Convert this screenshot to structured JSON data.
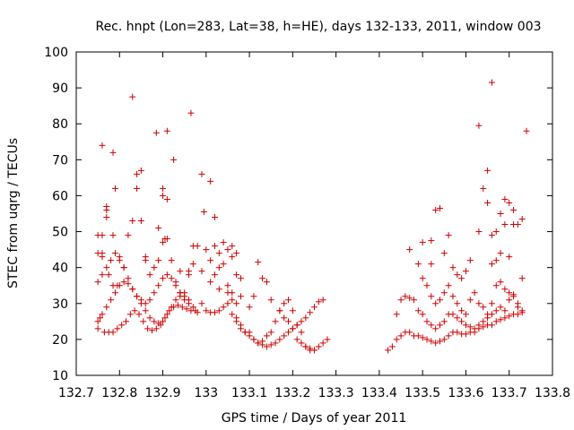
{
  "chart_data": {
    "type": "scatter",
    "title": "Rec. hnpt (Lon=283, Lat=38, h=HE), days 132-133, 2011, window 003",
    "xlabel": "GPS time / Days of year 2011",
    "ylabel": "STEC from uqrg / TECUs",
    "xlim": [
      132.7,
      133.8
    ],
    "ylim": [
      10,
      100
    ],
    "xticks": [
      "132.7",
      "132.8",
      "132.9",
      "133",
      "133.1",
      "133.2",
      "133.3",
      "133.4",
      "133.5",
      "133.6",
      "133.7",
      "133.8"
    ],
    "yticks": [
      "10",
      "20",
      "30",
      "40",
      "50",
      "60",
      "70",
      "80",
      "90",
      "100"
    ],
    "grid": false,
    "marker": "+",
    "color": "#cc0000",
    "points": [
      [
        132.75,
        23.0
      ],
      [
        132.755,
        26.0
      ],
      [
        132.765,
        22.0
      ],
      [
        132.775,
        22.0
      ],
      [
        132.785,
        22.0
      ],
      [
        132.795,
        23.0
      ],
      [
        132.805,
        24.0
      ],
      [
        132.815,
        25.0
      ],
      [
        132.825,
        27.0
      ],
      [
        132.835,
        28.0
      ],
      [
        132.845,
        27.0
      ],
      [
        132.855,
        25.0
      ],
      [
        132.865,
        23.0
      ],
      [
        132.875,
        22.5
      ],
      [
        132.885,
        23.0
      ],
      [
        132.895,
        24.0
      ],
      [
        132.905,
        26.0
      ],
      [
        132.915,
        28.0
      ],
      [
        132.925,
        29.0
      ],
      [
        132.935,
        29.5
      ],
      [
        132.945,
        29.0
      ],
      [
        132.955,
        28.5
      ],
      [
        132.965,
        28.0
      ],
      [
        132.975,
        28.0
      ],
      [
        132.75,
        25.0
      ],
      [
        132.76,
        27.0
      ],
      [
        132.77,
        29.0
      ],
      [
        132.78,
        31.0
      ],
      [
        132.79,
        33.0
      ],
      [
        132.8,
        35.0
      ],
      [
        132.81,
        36.0
      ],
      [
        132.82,
        35.5
      ],
      [
        132.83,
        34.0
      ],
      [
        132.84,
        32.0
      ],
      [
        132.85,
        30.0
      ],
      [
        132.86,
        28.0
      ],
      [
        132.87,
        26.0
      ],
      [
        132.88,
        25.0
      ],
      [
        132.89,
        24.5
      ],
      [
        132.9,
        25.0
      ],
      [
        132.91,
        27.0
      ],
      [
        132.92,
        29.0
      ],
      [
        132.93,
        31.0
      ],
      [
        132.94,
        32.0
      ],
      [
        132.95,
        32.0
      ],
      [
        132.96,
        31.0
      ],
      [
        132.97,
        29.0
      ],
      [
        132.98,
        27.5
      ],
      [
        132.75,
        36.0
      ],
      [
        132.76,
        38.0
      ],
      [
        132.77,
        40.0
      ],
      [
        132.78,
        42.0
      ],
      [
        132.79,
        44.0
      ],
      [
        132.8,
        43.0
      ],
      [
        132.81,
        40.0
      ],
      [
        132.82,
        37.0
      ],
      [
        132.83,
        34.0
      ],
      [
        132.84,
        32.0
      ],
      [
        132.85,
        31.0
      ],
      [
        132.86,
        30.0
      ],
      [
        132.87,
        31.0
      ],
      [
        132.88,
        33.0
      ],
      [
        132.89,
        35.0
      ],
      [
        132.9,
        37.0
      ],
      [
        132.91,
        38.0
      ],
      [
        132.92,
        37.0
      ],
      [
        132.93,
        35.0
      ],
      [
        132.94,
        33.0
      ],
      [
        132.95,
        31.0
      ],
      [
        132.96,
        30.0
      ],
      [
        132.75,
        44.0
      ],
      [
        132.76,
        43.0
      ],
      [
        132.775,
        38.0
      ],
      [
        132.785,
        35.0
      ],
      [
        132.795,
        35.0
      ],
      [
        132.81,
        40.0
      ],
      [
        132.82,
        49.0
      ],
      [
        132.83,
        53.0
      ],
      [
        132.84,
        62.0
      ],
      [
        132.85,
        53.0
      ],
      [
        132.86,
        42.0
      ],
      [
        132.87,
        38.0
      ],
      [
        132.88,
        40.0
      ],
      [
        132.89,
        42.0
      ],
      [
        132.9,
        47.0
      ],
      [
        132.91,
        48.0
      ],
      [
        132.92,
        42.0
      ],
      [
        132.93,
        36.0
      ],
      [
        132.94,
        33.0
      ],
      [
        132.95,
        33.0
      ],
      [
        132.96,
        38.0
      ],
      [
        132.97,
        41.0
      ],
      [
        132.98,
        46.0
      ],
      [
        132.99,
        39.0
      ],
      [
        132.75,
        49.0
      ],
      [
        132.76,
        44.0
      ],
      [
        132.77,
        56.0
      ],
      [
        132.77,
        54.0
      ],
      [
        132.77,
        57.0
      ],
      [
        132.785,
        49.0
      ],
      [
        132.79,
        62.0
      ],
      [
        132.8,
        42.0
      ],
      [
        132.84,
        66.0
      ],
      [
        132.85,
        67.0
      ],
      [
        132.86,
        43.0
      ],
      [
        132.89,
        51.0
      ],
      [
        132.9,
        60.0
      ],
      [
        132.9,
        62.0
      ],
      [
        132.905,
        48.0
      ],
      [
        132.91,
        59.0
      ],
      [
        132.925,
        70.0
      ],
      [
        132.94,
        39.0
      ],
      [
        132.96,
        39.0
      ],
      [
        132.97,
        46.0
      ],
      [
        132.76,
        49.0
      ],
      [
        132.76,
        74.0
      ],
      [
        132.785,
        72.0
      ],
      [
        132.83,
        87.5
      ],
      [
        132.885,
        77.5
      ],
      [
        132.91,
        78.0
      ],
      [
        132.965,
        83.0
      ],
      [
        132.99,
        66.0
      ],
      [
        133.01,
        64.0
      ],
      [
        133.02,
        54.0
      ],
      [
        132.995,
        55.5
      ],
      [
        133.0,
        45.0
      ],
      [
        133.01,
        42.0
      ],
      [
        133.02,
        46.0
      ],
      [
        133.03,
        44.0
      ],
      [
        133.04,
        47.0
      ],
      [
        133.05,
        45.0
      ],
      [
        133.06,
        43.0
      ],
      [
        133.07,
        38.0
      ],
      [
        133.08,
        37.0
      ],
      [
        132.99,
        30.0
      ],
      [
        133.0,
        28.0
      ],
      [
        133.01,
        27.5
      ],
      [
        133.02,
        27.5
      ],
      [
        133.03,
        28.0
      ],
      [
        133.04,
        29.0
      ],
      [
        133.05,
        30.0
      ],
      [
        133.06,
        31.0
      ],
      [
        133.07,
        30.0
      ],
      [
        133.08,
        32.0
      ],
      [
        133.01,
        36.0
      ],
      [
        133.02,
        38.0
      ],
      [
        133.03,
        40.0
      ],
      [
        133.04,
        41.0
      ],
      [
        133.05,
        35.0
      ],
      [
        133.06,
        33.0
      ],
      [
        133.07,
        25.0
      ],
      [
        133.08,
        23.0
      ],
      [
        133.09,
        22.0
      ],
      [
        133.1,
        21.0
      ],
      [
        133.11,
        20.0
      ],
      [
        133.12,
        19.0
      ],
      [
        133.13,
        18.5
      ],
      [
        133.14,
        18.0
      ],
      [
        133.15,
        18.5
      ],
      [
        133.16,
        19.0
      ],
      [
        133.17,
        20.0
      ],
      [
        133.18,
        21.0
      ],
      [
        133.19,
        22.0
      ],
      [
        133.2,
        23.0
      ],
      [
        133.21,
        24.0
      ],
      [
        133.22,
        25.0
      ],
      [
        133.23,
        26.0
      ],
      [
        133.24,
        27.5
      ],
      [
        133.25,
        29.0
      ],
      [
        133.26,
        30.5
      ],
      [
        133.27,
        31.0
      ],
      [
        133.03,
        34.0
      ],
      [
        133.05,
        33.0
      ],
      [
        133.06,
        27.0
      ],
      [
        133.07,
        26.0
      ],
      [
        133.08,
        24.0
      ],
      [
        133.09,
        22.0
      ],
      [
        133.1,
        22.0
      ],
      [
        133.11,
        20.0
      ],
      [
        133.12,
        19.0
      ],
      [
        133.13,
        19.5
      ],
      [
        133.14,
        21.0
      ],
      [
        133.15,
        22.0
      ],
      [
        133.16,
        25.0
      ],
      [
        133.17,
        28.0
      ],
      [
        133.18,
        26.0
      ],
      [
        133.19,
        25.0
      ],
      [
        133.2,
        23.0
      ],
      [
        133.21,
        20.0
      ],
      [
        133.22,
        19.0
      ],
      [
        133.23,
        18.0
      ],
      [
        133.24,
        17.5
      ],
      [
        133.25,
        17.0
      ],
      [
        133.26,
        18.0
      ],
      [
        133.27,
        19.0
      ],
      [
        133.28,
        20.0
      ],
      [
        133.06,
        46.0
      ],
      [
        133.07,
        44.0
      ],
      [
        133.1,
        29.0
      ],
      [
        133.11,
        32.0
      ],
      [
        133.12,
        41.5
      ],
      [
        133.13,
        37.0
      ],
      [
        133.14,
        36.0
      ],
      [
        133.15,
        31.0
      ],
      [
        133.17,
        28.0
      ],
      [
        133.18,
        30.0
      ],
      [
        133.19,
        31.0
      ],
      [
        133.2,
        28.0
      ],
      [
        133.21,
        24.0
      ],
      [
        133.22,
        22.0
      ],
      [
        133.23,
        18.0
      ],
      [
        133.24,
        17.0
      ],
      [
        133.25,
        17.0
      ],
      [
        133.42,
        17.0
      ],
      [
        133.43,
        18.0
      ],
      [
        133.44,
        20.0
      ],
      [
        133.45,
        21.0
      ],
      [
        133.46,
        22.0
      ],
      [
        133.47,
        22.0
      ],
      [
        133.48,
        21.0
      ],
      [
        133.49,
        21.0
      ],
      [
        133.5,
        20.5
      ],
      [
        133.51,
        20.0
      ],
      [
        133.52,
        19.5
      ],
      [
        133.53,
        19.0
      ],
      [
        133.54,
        19.5
      ],
      [
        133.55,
        20.0
      ],
      [
        133.56,
        21.0
      ],
      [
        133.57,
        22.0
      ],
      [
        133.58,
        22.0
      ],
      [
        133.59,
        21.5
      ],
      [
        133.6,
        21.5
      ],
      [
        133.61,
        22.0
      ],
      [
        133.62,
        22.0
      ],
      [
        133.63,
        23.0
      ],
      [
        133.64,
        23.5
      ],
      [
        133.65,
        24.0
      ],
      [
        133.66,
        24.0
      ],
      [
        133.67,
        25.0
      ],
      [
        133.68,
        25.5
      ],
      [
        133.69,
        26.0
      ],
      [
        133.7,
        26.5
      ],
      [
        133.71,
        27.0
      ],
      [
        133.72,
        27.0
      ],
      [
        133.73,
        27.5
      ],
      [
        133.44,
        27.0
      ],
      [
        133.45,
        31.0
      ],
      [
        133.46,
        32.0
      ],
      [
        133.47,
        31.5
      ],
      [
        133.48,
        31.0
      ],
      [
        133.49,
        28.0
      ],
      [
        133.5,
        27.0
      ],
      [
        133.51,
        25.0
      ],
      [
        133.52,
        24.0
      ],
      [
        133.53,
        23.0
      ],
      [
        133.54,
        24.0
      ],
      [
        133.55,
        25.0
      ],
      [
        133.56,
        27.0
      ],
      [
        133.57,
        27.0
      ],
      [
        133.58,
        26.0
      ],
      [
        133.59,
        25.0
      ],
      [
        133.6,
        24.0
      ],
      [
        133.61,
        23.5
      ],
      [
        133.62,
        23.0
      ],
      [
        133.63,
        24.0
      ],
      [
        133.64,
        25.0
      ],
      [
        133.65,
        26.0
      ],
      [
        133.66,
        27.0
      ],
      [
        133.67,
        28.0
      ],
      [
        133.68,
        29.0
      ],
      [
        133.69,
        28.0
      ],
      [
        133.7,
        31.0
      ],
      [
        133.71,
        32.0
      ],
      [
        133.72,
        29.0
      ],
      [
        133.73,
        28.0
      ],
      [
        133.47,
        45.0
      ],
      [
        133.49,
        41.0
      ],
      [
        133.5,
        47.0
      ],
      [
        133.51,
        35.0
      ],
      [
        133.52,
        32.0
      ],
      [
        133.53,
        30.0
      ],
      [
        133.54,
        31.0
      ],
      [
        133.55,
        33.0
      ],
      [
        133.56,
        35.0
      ],
      [
        133.57,
        32.0
      ],
      [
        133.58,
        30.0
      ],
      [
        133.59,
        28.0
      ],
      [
        133.6,
        27.0
      ],
      [
        133.61,
        31.0
      ],
      [
        133.62,
        33.0
      ],
      [
        133.63,
        30.0
      ],
      [
        133.64,
        29.0
      ],
      [
        133.65,
        27.0
      ],
      [
        133.66,
        30.0
      ],
      [
        133.67,
        35.0
      ],
      [
        133.68,
        36.0
      ],
      [
        133.69,
        34.0
      ],
      [
        133.7,
        33.0
      ],
      [
        133.71,
        32.5
      ],
      [
        133.72,
        30.0
      ],
      [
        133.5,
        37.0
      ],
      [
        133.52,
        41.0
      ],
      [
        133.53,
        56.0
      ],
      [
        133.54,
        56.5
      ],
      [
        133.55,
        44.0
      ],
      [
        133.56,
        49.0
      ],
      [
        133.57,
        40.0
      ],
      [
        133.58,
        38.0
      ],
      [
        133.59,
        37.0
      ],
      [
        133.6,
        39.0
      ],
      [
        133.61,
        42.0
      ],
      [
        133.63,
        50.0
      ],
      [
        133.64,
        62.0
      ],
      [
        133.65,
        58.0
      ],
      [
        133.66,
        41.0
      ],
      [
        133.67,
        42.0
      ],
      [
        133.68,
        44.0
      ],
      [
        133.69,
        52.0
      ],
      [
        133.7,
        43.0
      ],
      [
        133.71,
        52.0
      ],
      [
        133.72,
        52.0
      ],
      [
        133.73,
        53.5
      ],
      [
        133.73,
        37.0
      ],
      [
        133.52,
        47.5
      ],
      [
        133.65,
        67.0
      ],
      [
        133.66,
        49.0
      ],
      [
        133.67,
        50.0
      ],
      [
        133.68,
        55.0
      ],
      [
        133.69,
        59.0
      ],
      [
        133.7,
        58.0
      ],
      [
        133.71,
        56.0
      ],
      [
        133.63,
        79.5
      ],
      [
        133.66,
        91.5
      ],
      [
        133.74,
        78.0
      ]
    ]
  }
}
